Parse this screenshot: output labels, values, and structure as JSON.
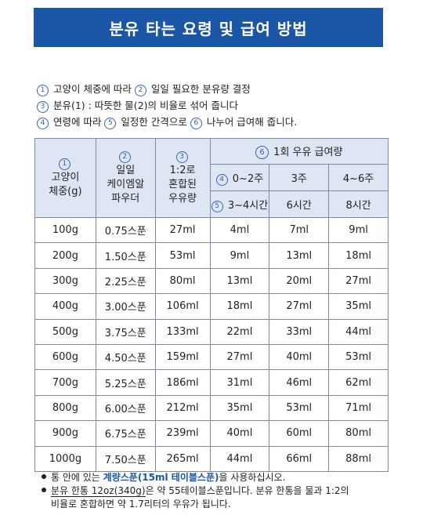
{
  "title": "분유 타는 요령 및 급여 방법",
  "intro": [
    {
      "parts": [
        {
          "c": "1",
          "t": " 고양이 체중에 따라 "
        },
        {
          "c": "2",
          "t": " 일일 필요한 분유량 결정"
        }
      ]
    },
    {
      "parts": [
        {
          "c": "3",
          "t": " 분유(1) : 따뜻한 물(2)의 비율로 섞어 줍니다"
        }
      ]
    },
    {
      "parts": [
        {
          "c": "4",
          "t": " 연령에 따라 "
        },
        {
          "c": "5",
          "t": " 일정한 간격으로 "
        },
        {
          "c": "6",
          "t": " 나누어 급여해 줍니다."
        }
      ]
    }
  ],
  "table": {
    "col1": {
      "num": "1",
      "l1": "고양이",
      "l2": "체중(g)"
    },
    "col2": {
      "num": "2",
      "l1": "일일",
      "l2": "케이엠알",
      "l3": "파우더"
    },
    "col3": {
      "num": "3",
      "l1": "1:2로",
      "l2": "혼합된",
      "l3": "우유량"
    },
    "group": {
      "num": "6",
      "label": "1회 우유 급여량"
    },
    "age": [
      {
        "num": "4",
        "label": "0~2주"
      },
      {
        "num": "",
        "label": "3주"
      },
      {
        "num": "",
        "label": "4~6주"
      }
    ],
    "interval": [
      {
        "num": "5",
        "label": "3~4시간"
      },
      {
        "num": "",
        "label": "6시간"
      },
      {
        "num": "",
        "label": "8시간"
      }
    ],
    "rows": [
      [
        "100g",
        "0.75스푼",
        "27ml",
        "4ml",
        "7ml",
        "9ml"
      ],
      [
        "200g",
        "1.50스푼",
        "53ml",
        "9ml",
        "13ml",
        "18ml"
      ],
      [
        "300g",
        "2.25스푼",
        "80ml",
        "13ml",
        "20ml",
        "27ml"
      ],
      [
        "400g",
        "3.00스푼",
        "106ml",
        "18ml",
        "27ml",
        "35ml"
      ],
      [
        "500g",
        "3.75스푼",
        "133ml",
        "22ml",
        "33ml",
        "44ml"
      ],
      [
        "600g",
        "4.50스푼",
        "159ml",
        "27ml",
        "40ml",
        "53ml"
      ],
      [
        "700g",
        "5.25스푼",
        "186ml",
        "31ml",
        "46ml",
        "62ml"
      ],
      [
        "800g",
        "6.00스푼",
        "212ml",
        "35ml",
        "53ml",
        "71ml"
      ],
      [
        "900g",
        "6.75스푼",
        "239ml",
        "40ml",
        "60ml",
        "80ml"
      ],
      [
        "1000g",
        "7.50스푼",
        "265ml",
        "44ml",
        "66ml",
        "88ml"
      ]
    ]
  },
  "notes": {
    "n1_pre": "통 안에 있는 ",
    "n1_hl": "계량스푼(15ml 테이블스푼)",
    "n1_post": "을 사용하십시오.",
    "n2_ul": "분유 한통 12oz(340g)",
    "n2_post": "은 약 55테이블스푼입니다. 분유 한통을 물과 1:2의",
    "n3": "비율로 혼합하면 약 1.7리터의 우유가 됩니다."
  },
  "colors": {
    "title_bg": "#1a55a6",
    "header_bg": "#dfe6f3",
    "accent": "#3a62b0"
  }
}
